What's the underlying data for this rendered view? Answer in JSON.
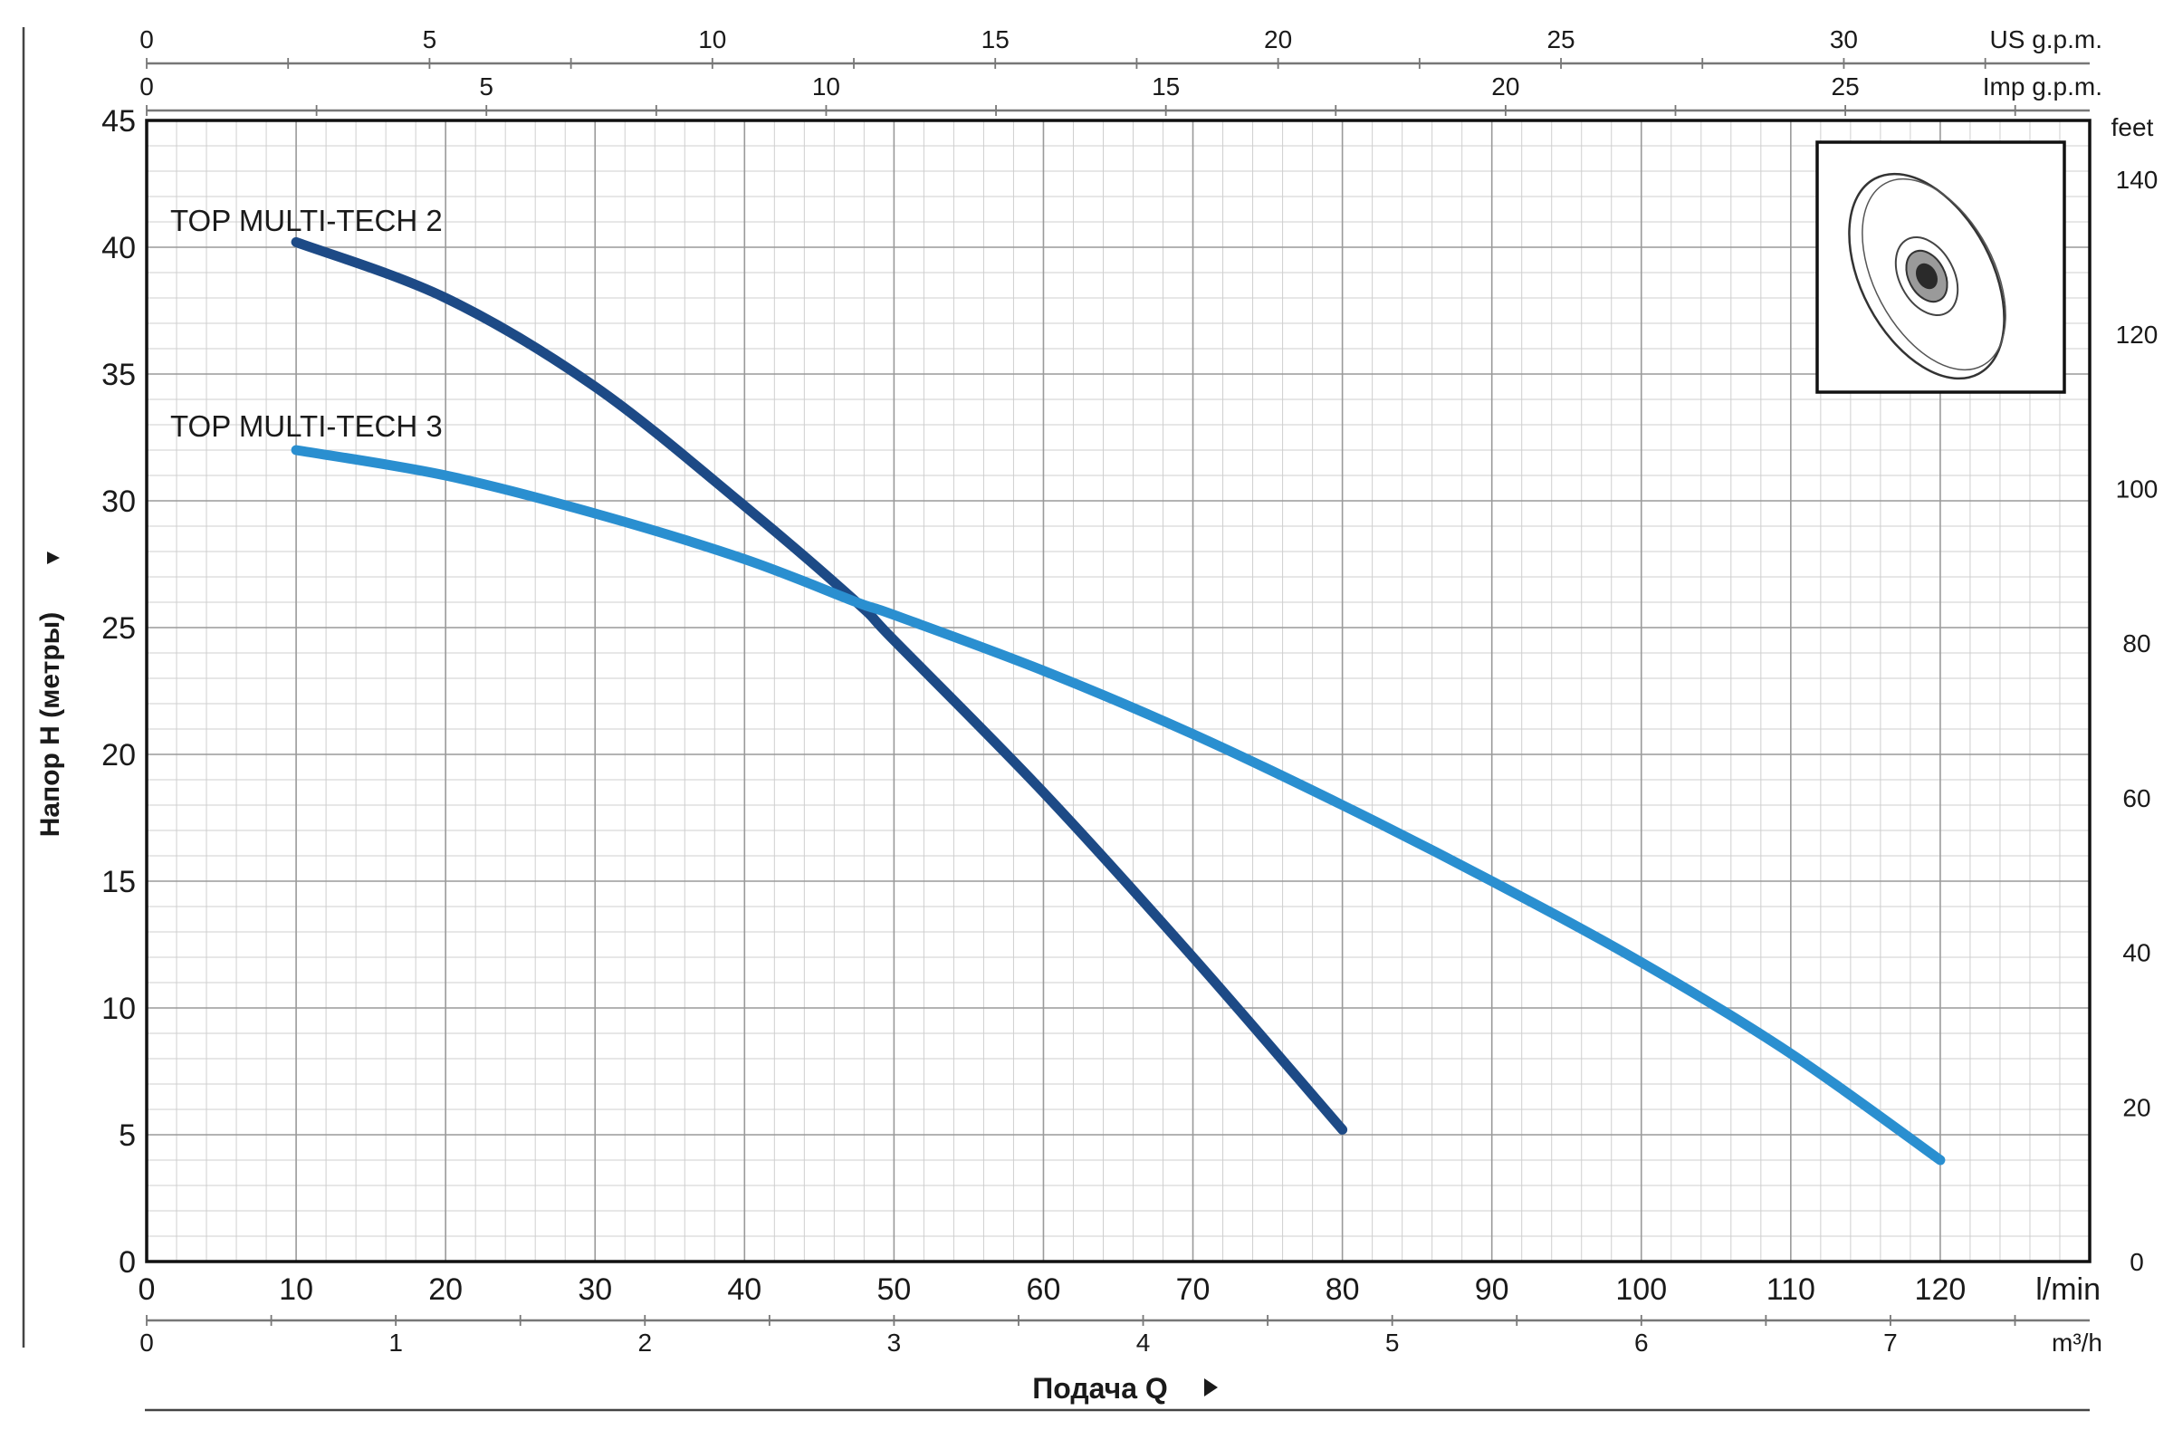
{
  "chart_data": {
    "type": "line",
    "xlabel": "Подача Q",
    "ylabel": "Напор H (метры)",
    "x_unit": "l/min",
    "xlim": [
      0,
      130
    ],
    "ylim": [
      0,
      45
    ],
    "grid": true,
    "x_ticks": [
      "0",
      "10",
      "20",
      "30",
      "40",
      "50",
      "60",
      "70",
      "80",
      "90",
      "100",
      "110",
      "120"
    ],
    "y_ticks": [
      "0",
      "5",
      "10",
      "15",
      "20",
      "25",
      "30",
      "35",
      "40",
      "45"
    ],
    "secondary_axes": {
      "m3h": {
        "unit": "m³/h",
        "ticks": [
          "0",
          "1",
          "2",
          "3",
          "4",
          "5",
          "6",
          "7"
        ]
      },
      "us_gpm": {
        "unit": "US g.p.m.",
        "ticks": [
          "0",
          "5",
          "10",
          "15",
          "20",
          "25",
          "30"
        ]
      },
      "imp_gpm": {
        "unit": "Imp g.p.m.",
        "ticks": [
          "0",
          "5",
          "10",
          "15",
          "20",
          "25"
        ]
      },
      "feet": {
        "unit": "feet",
        "ticks": [
          "0",
          "20",
          "40",
          "60",
          "80",
          "100",
          "120",
          "140"
        ]
      }
    },
    "series": [
      {
        "name": "TOP MULTI-TECH 2",
        "color": "#1d4a86",
        "x": [
          10,
          20,
          30,
          40,
          47.5,
          50,
          60,
          70,
          80
        ],
        "y": [
          40.2,
          38.0,
          34.5,
          29.8,
          26.0,
          24.5,
          18.5,
          12.0,
          5.2
        ]
      },
      {
        "name": "TOP MULTI-TECH 3",
        "color": "#2a8fd0",
        "x": [
          10,
          20,
          30,
          40,
          47.5,
          50,
          60,
          70,
          80,
          90,
          100,
          110,
          120
        ],
        "y": [
          32.0,
          31.0,
          29.5,
          27.7,
          26.0,
          25.5,
          23.3,
          20.8,
          18.0,
          15.0,
          11.8,
          8.2,
          4.0
        ]
      }
    ],
    "inset_image": "impeller-drawing"
  }
}
